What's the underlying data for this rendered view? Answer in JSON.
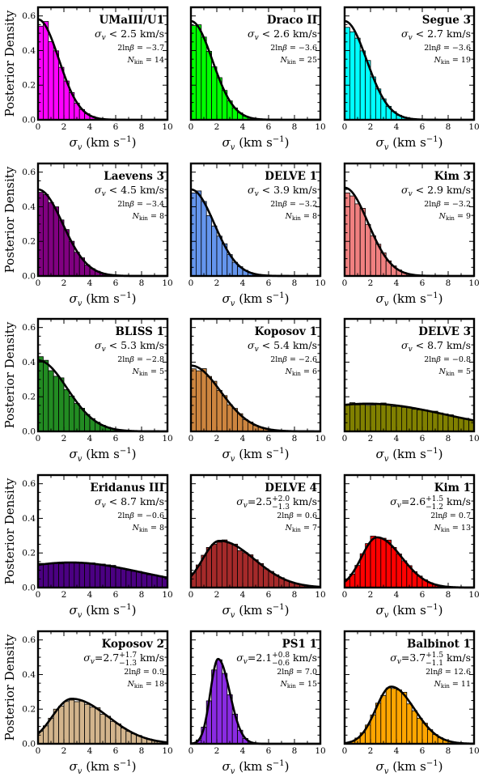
{
  "figure": {
    "ylabel": "Posterior Density",
    "xlabel_main": "σ",
    "xlabel_sub": "v",
    "xlabel_units": " (km s",
    "xlabel_exp": "−1",
    "xlabel_close": ")",
    "x_ticks": [
      "0",
      "2",
      "4",
      "6",
      "8",
      "10"
    ],
    "y_ticks": [
      "0.0",
      "0.2",
      "0.4",
      "0.6"
    ]
  },
  "chart_data": [
    {
      "type": "bar",
      "name": "UMaIII/U1",
      "color": "#ff00ff",
      "kind": "limit",
      "sigma_text": "< 2.5 km/s",
      "lnbeta": "−3.7",
      "nkin": "14",
      "xlim": [
        0,
        10
      ],
      "ylim": [
        0,
        0.65
      ],
      "peak": 0,
      "width": 1.6,
      "amp": 0.58,
      "tail": 0
    },
    {
      "type": "bar",
      "name": "Draco II",
      "color": "#00ff00",
      "kind": "limit",
      "sigma_text": "< 2.6 km/s",
      "lnbeta": "−3.6",
      "nkin": "25",
      "xlim": [
        0,
        10
      ],
      "ylim": [
        0,
        0.65
      ],
      "peak": 0,
      "width": 1.65,
      "amp": 0.57,
      "tail": 0
    },
    {
      "type": "bar",
      "name": "Segue 3",
      "color": "#00ffff",
      "kind": "limit",
      "sigma_text": "< 2.7 km/s",
      "lnbeta": "−3.6",
      "nkin": "19",
      "xlim": [
        0,
        10
      ],
      "ylim": [
        0,
        0.65
      ],
      "peak": 0,
      "width": 1.7,
      "amp": 0.57,
      "tail": 0
    },
    {
      "type": "bar",
      "name": "Laevens 3",
      "color": "#800080",
      "kind": "limit",
      "sigma_text": "< 4.5 km/s",
      "lnbeta": "−3.4",
      "nkin": "8",
      "xlim": [
        0,
        10
      ],
      "ylim": [
        0,
        0.65
      ],
      "peak": 0,
      "width": 1.7,
      "amp": 0.5,
      "tail": 0.2
    },
    {
      "type": "bar",
      "name": "DELVE 1",
      "color": "#6495ed",
      "kind": "limit",
      "sigma_text": "< 3.9 km/s",
      "lnbeta": "−3.2",
      "nkin": "8",
      "xlim": [
        0,
        10
      ],
      "ylim": [
        0,
        0.65
      ],
      "peak": 0,
      "width": 1.7,
      "amp": 0.5,
      "tail": 0.1
    },
    {
      "type": "bar",
      "name": "Kim 3",
      "color": "#f08080",
      "kind": "limit",
      "sigma_text": "< 2.9 km/s",
      "lnbeta": "−3.2",
      "nkin": "9",
      "xlim": [
        0,
        10
      ],
      "ylim": [
        0,
        0.65
      ],
      "peak": 0,
      "width": 1.8,
      "amp": 0.51,
      "tail": 0
    },
    {
      "type": "bar",
      "name": "BLISS 1",
      "color": "#228b22",
      "kind": "limit",
      "sigma_text": "< 5.3 km/s",
      "lnbeta": "−2.8",
      "nkin": "5",
      "xlim": [
        0,
        10
      ],
      "ylim": [
        0,
        0.65
      ],
      "peak": 0,
      "width": 2.0,
      "amp": 0.41,
      "tail": 0.25
    },
    {
      "type": "bar",
      "name": "Koposov 1",
      "color": "#cd853f",
      "kind": "limit",
      "sigma_text": "< 5.4 km/s",
      "lnbeta": "−2.6",
      "nkin": "6",
      "xlim": [
        0,
        10
      ],
      "ylim": [
        0,
        0.65
      ],
      "peak": 0,
      "width": 2.0,
      "amp": 0.38,
      "tail": 0.3
    },
    {
      "type": "bar",
      "name": "DELVE 3",
      "color": "#808000",
      "kind": "limit",
      "sigma_text": "< 8.7 km/s",
      "lnbeta": "−0.8",
      "nkin": "5",
      "xlim": [
        0,
        10
      ],
      "ylim": [
        0,
        0.65
      ],
      "peak": 1.8,
      "width": 6.0,
      "amp": 0.16,
      "tail": 0
    },
    {
      "type": "bar",
      "name": "Eridanus III",
      "color": "#4b0082",
      "kind": "limit",
      "sigma_text": "< 8.7 km/s",
      "lnbeta": "−0.6",
      "nkin": "8",
      "xlim": [
        0,
        10
      ],
      "ylim": [
        0,
        0.65
      ],
      "peak": 2.5,
      "width": 5.5,
      "amp": 0.145,
      "tail": 0
    },
    {
      "type": "bar",
      "name": "DELVE 4",
      "color": "#a52a2a",
      "kind": "measure",
      "sigma_central": "2.5",
      "sigma_plus": "+2.0",
      "sigma_minus": "−1.3",
      "sigma_units": " km/s",
      "lnbeta": "0.6",
      "nkin": "7",
      "xlim": [
        0,
        10
      ],
      "ylim": [
        0,
        0.65
      ],
      "peak": 2.2,
      "width": 1.3,
      "amp": 0.27,
      "tail": 1.4
    },
    {
      "type": "bar",
      "name": "Kim 1",
      "color": "#ff0000",
      "kind": "measure",
      "sigma_central": "2.6",
      "sigma_plus": "+1.5",
      "sigma_minus": "−1.2",
      "sigma_units": " km/s",
      "lnbeta": "0.7",
      "nkin": "13",
      "xlim": [
        0,
        10
      ],
      "ylim": [
        0,
        0.65
      ],
      "peak": 2.5,
      "width": 1.2,
      "amp": 0.29,
      "tail": 0.7
    },
    {
      "type": "bar",
      "name": "Koposov 2",
      "color": "#d2b48c",
      "kind": "measure",
      "sigma_central": "2.7",
      "sigma_plus": "+1.7",
      "sigma_minus": "−1.3",
      "sigma_units": " km/s",
      "lnbeta": "0.9",
      "nkin": "18",
      "xlim": [
        0,
        10
      ],
      "ylim": [
        0,
        0.65
      ],
      "peak": 2.6,
      "width": 1.5,
      "amp": 0.26,
      "tail": 1.3
    },
    {
      "type": "bar",
      "name": "PS1 1",
      "color": "#8a2be2",
      "kind": "measure",
      "sigma_central": "2.1",
      "sigma_plus": "+0.8",
      "sigma_minus": "−0.6",
      "sigma_units": " km/s",
      "lnbeta": "7.0",
      "nkin": "15",
      "xlim": [
        0,
        10
      ],
      "ylim": [
        0,
        0.65
      ],
      "peak": 2.1,
      "width": 0.6,
      "amp": 0.49,
      "tail": 0.3
    },
    {
      "type": "bar",
      "name": "Balbinot 1",
      "color": "#ffa500",
      "kind": "measure",
      "sigma_central": "3.7",
      "sigma_plus": "+1.5",
      "sigma_minus": "−1.1",
      "sigma_units": " km/s",
      "lnbeta": "12.6",
      "nkin": "11",
      "xlim": [
        0,
        10
      ],
      "ylim": [
        0,
        0.65
      ],
      "peak": 3.6,
      "width": 1.2,
      "amp": 0.33,
      "tail": 0.6
    }
  ]
}
